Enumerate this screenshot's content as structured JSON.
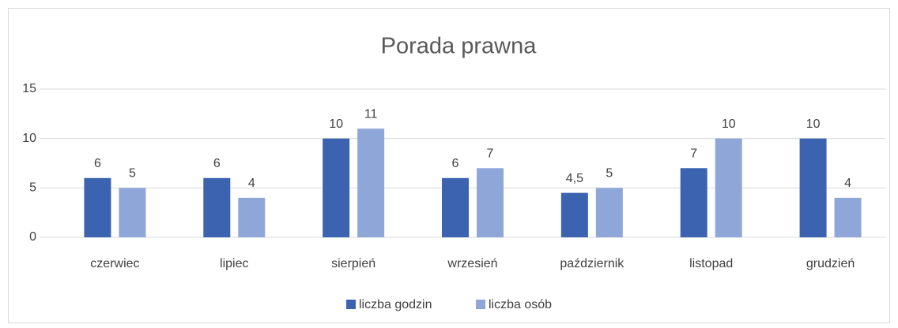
{
  "chart_data": {
    "type": "bar",
    "title": "Porada prawna",
    "categories": [
      "czerwiec",
      "lipiec",
      "sierpień",
      "wrzesień",
      "październik",
      "listopad",
      "grudzień"
    ],
    "series": [
      {
        "name": "liczba godzin",
        "color": "#3b63b0",
        "values": [
          6,
          6,
          10,
          6,
          4.5,
          7,
          10
        ],
        "value_labels": [
          "6",
          "6",
          "10",
          "6",
          "4,5",
          "7",
          "10"
        ]
      },
      {
        "name": "liczba osób",
        "color": "#8fa7d8",
        "values": [
          5,
          4,
          11,
          7,
          5,
          10,
          4
        ],
        "value_labels": [
          "5",
          "4",
          "11",
          "7",
          "5",
          "10",
          "4"
        ]
      }
    ],
    "ylim": [
      0,
      15
    ],
    "yticks": [
      0,
      5,
      10,
      15
    ],
    "grid": true,
    "legend": "bottom"
  }
}
